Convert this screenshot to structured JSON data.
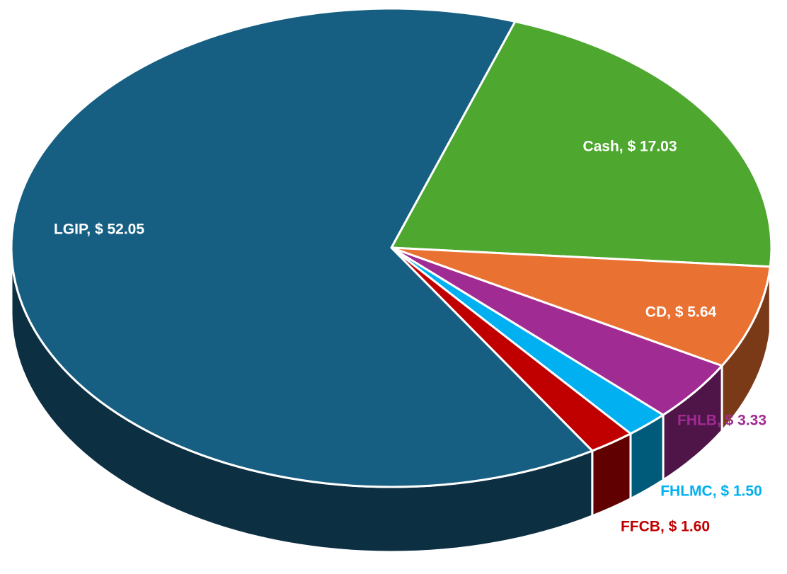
{
  "chart_data": {
    "type": "pie3d",
    "categories": [
      "Cash",
      "CD",
      "FHLB",
      "FHLMC",
      "FFCB",
      "LGIP"
    ],
    "values": [
      17.03,
      5.64,
      3.33,
      1.5,
      1.6,
      52.05
    ],
    "value_labels": [
      "Cash, $ 17.03",
      "CD, $ 5.64",
      "FHLB, $ 3.33",
      "FHLMC, $ 1.50",
      "FFCB, $ 1.60",
      "LGIP, $ 52.05"
    ],
    "colors": [
      "#4ea72e",
      "#e97132",
      "#a02b93",
      "#00b0f0",
      "#c00000",
      "#175f82"
    ],
    "side_colors": [
      "#2f6a1a",
      "#7a3a18",
      "#4f1548",
      "#005a7a",
      "#600000",
      "#0d2f42"
    ]
  }
}
